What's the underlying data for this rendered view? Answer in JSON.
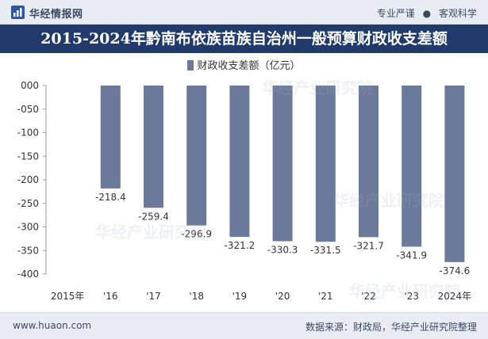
{
  "header": {
    "brand": "华经情报网",
    "tag1": "专业严谨",
    "tag2": "客观科学",
    "logo_icon": "chart-logo-icon"
  },
  "title": "2015-2024年黔南布依族苗族自治州一般预算财政收支差额",
  "footer": {
    "site": "www.huaon.com",
    "source": "数据来源：财政局，华经产业研究院整理"
  },
  "watermarks": [
    "华经产业研究院",
    "华经产业研究院",
    "华经产业研究院",
    "华经产业研究院"
  ],
  "colors": {
    "bar": "#6b7a9a",
    "title_bg": "#1f3a6b"
  },
  "chart_data": {
    "type": "bar",
    "categories": [
      "2015年",
      "'16",
      "'17",
      "'18",
      "'19",
      "'20",
      "'21",
      "'22",
      "'23",
      "2024年"
    ],
    "series": [
      {
        "name": "财政收支差额（亿元）",
        "values": [
          null,
          -218.4,
          -259.4,
          -296.9,
          -321.2,
          -330.3,
          -331.5,
          -321.7,
          -341.9,
          -374.6
        ]
      }
    ],
    "value_labels": [
      "",
      "-218.4",
      "-259.4",
      "-296.9",
      "-321.2",
      "-330.3",
      "-331.5",
      "-321.7",
      "-341.9",
      "-374.6"
    ],
    "ylim": [
      -400,
      0
    ],
    "yticks": [
      0,
      -50,
      -100,
      -150,
      -200,
      -250,
      -300,
      -350,
      -400
    ],
    "ytick_labels": [
      "000",
      "-050",
      "-100",
      "-150",
      "-200",
      "-250",
      "-300",
      "-350",
      "-400"
    ],
    "legend_position": "top-center",
    "grid": false,
    "xlabel": "",
    "ylabel": ""
  }
}
